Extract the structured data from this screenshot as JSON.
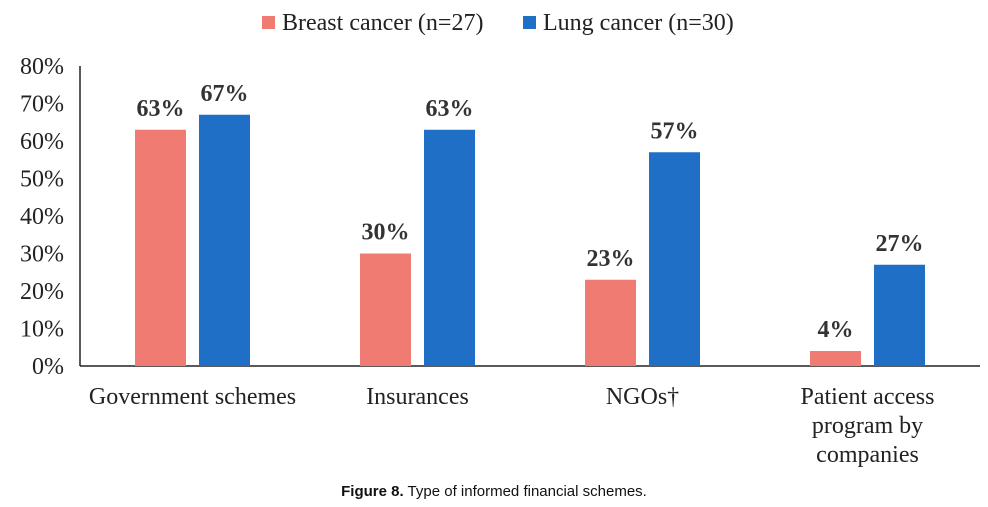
{
  "caption": {
    "label": "Figure 8.",
    "text": " Type of informed financial schemes."
  },
  "chart_data": {
    "type": "bar",
    "title": "",
    "xlabel": "",
    "ylabel": "",
    "ylim": [
      0,
      80
    ],
    "y_ticks": [
      "0%",
      "10%",
      "20%",
      "30%",
      "40%",
      "50%",
      "60%",
      "70%",
      "80%"
    ],
    "grid": false,
    "legend_position": "top",
    "categories": [
      [
        "Government schemes"
      ],
      [
        "Insurances"
      ],
      [
        "NGOs†"
      ],
      [
        "Patient access",
        "program by",
        "companies"
      ]
    ],
    "series": [
      {
        "name": "Breast cancer (n=27)",
        "color": "#f07b72",
        "values": [
          63,
          30,
          23,
          4
        ],
        "labels": [
          "63%",
          "30%",
          "23%",
          "4%"
        ]
      },
      {
        "name": "Lung cancer (n=30)",
        "color": "#1f6fc6",
        "values": [
          67,
          63,
          57,
          27
        ],
        "labels": [
          "67%",
          "63%",
          "57%",
          "27%"
        ]
      }
    ]
  }
}
